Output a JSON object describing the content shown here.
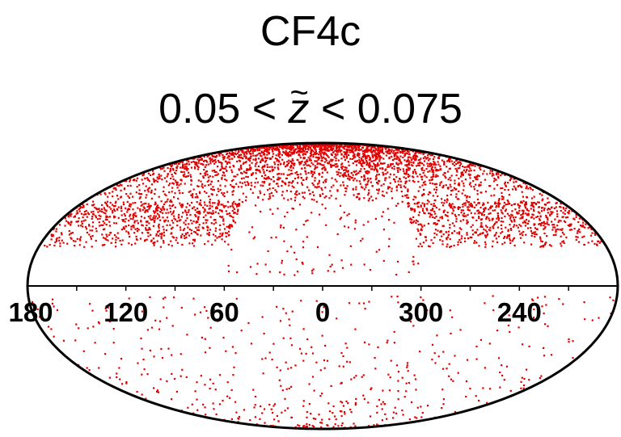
{
  "chart_data": {
    "type": "scatter",
    "projection": "aitoff/mollweide all-sky (galactic longitude, latitude)",
    "title": "CF4c",
    "subtitle_pre": "0.05 < ",
    "subtitle_var": "z",
    "subtitle_post": " < 0.075",
    "x_ticks": [
      "180",
      "120",
      "60",
      "0",
      "300",
      "240"
    ],
    "x_tick_values": [
      180,
      120,
      60,
      0,
      300,
      240
    ],
    "point_color": "#e00000",
    "regions": [
      {
        "lon_range": [
          -180,
          180
        ],
        "lat_range": [
          45,
          90
        ],
        "density": "high",
        "count": 2600
      },
      {
        "lon_range": [
          60,
          180
        ],
        "lat_range": [
          20,
          45
        ],
        "density": "high",
        "count": 700
      },
      {
        "lon_range": [
          -180,
          -60
        ],
        "lat_range": [
          20,
          45
        ],
        "density": "high",
        "count": 700
      },
      {
        "lon_range": [
          -60,
          60
        ],
        "lat_range": [
          5,
          45
        ],
        "density": "low",
        "count": 110
      },
      {
        "lon_range": [
          -180,
          180
        ],
        "lat_range": [
          -90,
          -5
        ],
        "density": "low",
        "count": 520
      }
    ]
  }
}
